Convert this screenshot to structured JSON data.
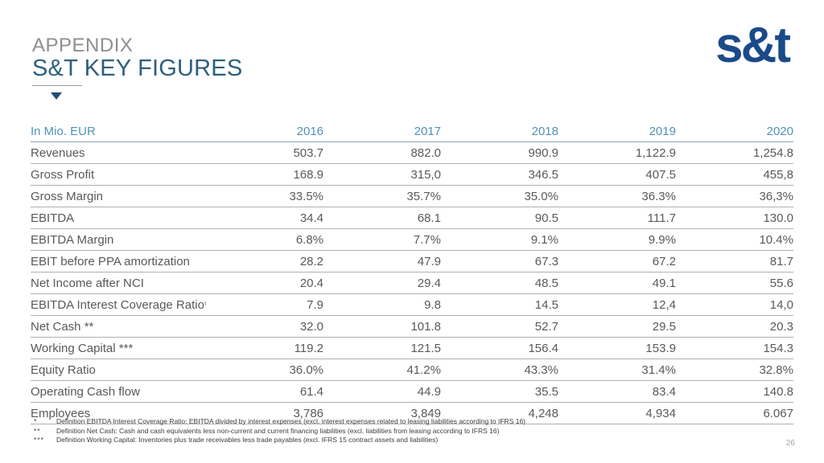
{
  "slide": {
    "pretitle": "APPENDIX",
    "title": "S&T KEY FIGURES",
    "logo": "s&t",
    "page_number": "26"
  },
  "colors": {
    "title_blue": "#2d5f7e",
    "pretitle_gray": "#8e8e8e",
    "table_header_blue": "#4f93b8",
    "body_text_gray": "#595959",
    "logo_navy": "#1b4a8a",
    "triangle_navy": "#1f4e79"
  },
  "icons": {
    "down_triangle": "triangle-down-marker"
  },
  "table": {
    "header": [
      "In Mio. EUR",
      "2016",
      "2017",
      "2018",
      "2019",
      "2020"
    ],
    "rows": [
      {
        "label": "Revenues",
        "values": [
          "503.7",
          "882.0",
          "990.9",
          "1,122.9",
          "1,254.8"
        ]
      },
      {
        "label": "Gross Profit",
        "values": [
          "168.9",
          "315,0",
          "346.5",
          "407.5",
          "455,8"
        ]
      },
      {
        "label": "Gross Margin",
        "values": [
          "33.5%",
          "35.7%",
          "35.0%",
          "36.3%",
          "36,3%"
        ]
      },
      {
        "label": "EBITDA",
        "values": [
          "34.4",
          "68.1",
          "90.5",
          "111.7",
          "130.0"
        ]
      },
      {
        "label": "EBITDA Margin",
        "values": [
          "6.8%",
          "7.7%",
          "9.1%",
          "9.9%",
          "10.4%"
        ]
      },
      {
        "label": "EBIT before PPA amortization",
        "values": [
          "28.2",
          "47.9",
          "67.3",
          "67.2",
          "81.7"
        ]
      },
      {
        "label": "Net Income after NCI",
        "values": [
          "20.4",
          "29.4",
          "48.5",
          "49.1",
          "55.6"
        ]
      },
      {
        "label": "EBITDA Interest Coverage Ratio*",
        "values": [
          "7.9",
          "9.8",
          "14.5",
          "12,4",
          "14,0"
        ]
      },
      {
        "label": "Net Cash **",
        "values": [
          "32.0",
          "101.8",
          "52.7",
          "29.5",
          "20.3"
        ]
      },
      {
        "label": "Working Capital ***",
        "values": [
          "119.2",
          "121.5",
          "156.4",
          "153.9",
          "154.3"
        ]
      },
      {
        "label": "Equity Ratio",
        "values": [
          "36.0%",
          "41.2%",
          "43.3%",
          "31.4%",
          "32.8%"
        ]
      },
      {
        "label": "Operating Cash flow",
        "values": [
          "61.4",
          "44.9",
          "35.5",
          "83.4",
          "140.8"
        ]
      },
      {
        "label": "Employees",
        "values": [
          "3,786",
          "3,849",
          "4,248",
          "4,934",
          "6.067"
        ]
      }
    ]
  },
  "footnotes": [
    {
      "marker": "*",
      "text": "Definition EBITDA Interest Coverage Ratio: EBITDA divided by interest expenses (excl. interest expenses related to leasing liabilities according to IFRS 16)"
    },
    {
      "marker": "**",
      "text": "Definition Net Cash: Cash and cash equivalents less non-current and current financing liabilities (excl. liabilities from leasing according to IFRS 16)"
    },
    {
      "marker": "***",
      "text": "Definition Working Capital: Inventories plus trade receivables less trade payables (excl. IFRS 15 contract assets and liabilities)"
    }
  ]
}
